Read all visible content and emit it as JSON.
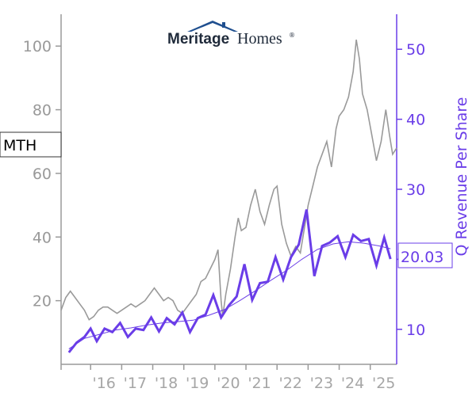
{
  "logo": {
    "brand_bold": "Meritage",
    "brand_light": "Homes",
    "mark": "®"
  },
  "ticker_label": "MTH",
  "last_value_label": "20.03",
  "colors": {
    "price": "#9a9a9a",
    "revenue": "#6a3de8",
    "trend": "#6a3de8",
    "left_axis": "#9a9a9a",
    "right_axis": "#6a3de8"
  },
  "chart_data": {
    "type": "line",
    "x_ticks": [
      "'16",
      "'17",
      "'18",
      "'19",
      "'20",
      "'21",
      "'22",
      "'23",
      "'24",
      "'25"
    ],
    "xlim": [
      2015.05,
      2025.85
    ],
    "y_left": {
      "label": "",
      "lim": [
        0,
        110
      ],
      "ticks": [
        20,
        40,
        60,
        80,
        100
      ]
    },
    "y_right": {
      "label": "Q Revenue Per Share",
      "lim": [
        5,
        55
      ],
      "ticks": [
        10,
        20,
        30,
        40,
        50
      ]
    },
    "series": [
      {
        "axis": "left",
        "style": "thin-gray",
        "points": [
          [
            2015.05,
            17
          ],
          [
            2015.2,
            21
          ],
          [
            2015.35,
            23
          ],
          [
            2015.5,
            21
          ],
          [
            2015.65,
            19
          ],
          [
            2015.8,
            17
          ],
          [
            2015.95,
            14
          ],
          [
            2016.1,
            15
          ],
          [
            2016.25,
            17
          ],
          [
            2016.4,
            18
          ],
          [
            2016.55,
            18
          ],
          [
            2016.7,
            17
          ],
          [
            2016.85,
            16
          ],
          [
            2017.0,
            17
          ],
          [
            2017.15,
            18
          ],
          [
            2017.3,
            19
          ],
          [
            2017.45,
            18
          ],
          [
            2017.6,
            19
          ],
          [
            2017.75,
            20
          ],
          [
            2017.9,
            22
          ],
          [
            2018.05,
            24
          ],
          [
            2018.2,
            22
          ],
          [
            2018.35,
            20
          ],
          [
            2018.5,
            21
          ],
          [
            2018.65,
            20
          ],
          [
            2018.8,
            17
          ],
          [
            2018.95,
            16
          ],
          [
            2019.1,
            18
          ],
          [
            2019.25,
            20
          ],
          [
            2019.4,
            22
          ],
          [
            2019.55,
            26
          ],
          [
            2019.7,
            27
          ],
          [
            2019.85,
            30
          ],
          [
            2020.0,
            33
          ],
          [
            2020.1,
            36
          ],
          [
            2020.2,
            20
          ],
          [
            2020.25,
            15
          ],
          [
            2020.35,
            22
          ],
          [
            2020.5,
            30
          ],
          [
            2020.65,
            40
          ],
          [
            2020.75,
            46
          ],
          [
            2020.85,
            42
          ],
          [
            2021.0,
            43
          ],
          [
            2021.15,
            50
          ],
          [
            2021.3,
            55
          ],
          [
            2021.45,
            48
          ],
          [
            2021.6,
            44
          ],
          [
            2021.75,
            50
          ],
          [
            2021.9,
            55
          ],
          [
            2022.0,
            56
          ],
          [
            2022.15,
            44
          ],
          [
            2022.3,
            38
          ],
          [
            2022.45,
            34
          ],
          [
            2022.6,
            37
          ],
          [
            2022.75,
            35
          ],
          [
            2022.9,
            44
          ],
          [
            2023.0,
            50
          ],
          [
            2023.15,
            56
          ],
          [
            2023.3,
            62
          ],
          [
            2023.45,
            66
          ],
          [
            2023.6,
            70
          ],
          [
            2023.75,
            62
          ],
          [
            2023.9,
            74
          ],
          [
            2024.0,
            78
          ],
          [
            2024.15,
            80
          ],
          [
            2024.3,
            84
          ],
          [
            2024.45,
            92
          ],
          [
            2024.55,
            102
          ],
          [
            2024.65,
            96
          ],
          [
            2024.75,
            85
          ],
          [
            2024.9,
            80
          ],
          [
            2025.05,
            72
          ],
          [
            2025.2,
            64
          ],
          [
            2025.35,
            70
          ],
          [
            2025.5,
            80
          ],
          [
            2025.62,
            72
          ],
          [
            2025.72,
            66
          ],
          [
            2025.85,
            68
          ]
        ]
      },
      {
        "axis": "right",
        "name": "Q Revenue Per Share",
        "style": "thick-purple",
        "points": [
          [
            2015.3,
            6.7
          ],
          [
            2015.55,
            8.1
          ],
          [
            2015.8,
            8.9
          ],
          [
            2016.0,
            10.1
          ],
          [
            2016.2,
            8.3
          ],
          [
            2016.45,
            10.1
          ],
          [
            2016.7,
            9.6
          ],
          [
            2016.95,
            10.9
          ],
          [
            2017.2,
            8.9
          ],
          [
            2017.45,
            10.1
          ],
          [
            2017.7,
            9.9
          ],
          [
            2017.95,
            11.7
          ],
          [
            2018.2,
            9.7
          ],
          [
            2018.45,
            11.6
          ],
          [
            2018.7,
            10.7
          ],
          [
            2018.95,
            12.4
          ],
          [
            2019.2,
            9.6
          ],
          [
            2019.45,
            11.6
          ],
          [
            2019.7,
            12.1
          ],
          [
            2019.95,
            14.9
          ],
          [
            2020.2,
            11.7
          ],
          [
            2020.45,
            13.4
          ],
          [
            2020.7,
            14.7
          ],
          [
            2020.95,
            19.3
          ],
          [
            2021.2,
            14.2
          ],
          [
            2021.45,
            16.6
          ],
          [
            2021.7,
            16.8
          ],
          [
            2021.95,
            20.3
          ],
          [
            2022.2,
            17.1
          ],
          [
            2022.45,
            20.3
          ],
          [
            2022.7,
            22.1
          ],
          [
            2022.95,
            27.1
          ],
          [
            2023.2,
            17.6
          ],
          [
            2023.45,
            21.9
          ],
          [
            2023.7,
            22.4
          ],
          [
            2023.95,
            23.3
          ],
          [
            2024.2,
            20.3
          ],
          [
            2024.45,
            23.5
          ],
          [
            2024.7,
            22.6
          ],
          [
            2024.95,
            22.9
          ],
          [
            2025.2,
            19.1
          ],
          [
            2025.45,
            23.1
          ],
          [
            2025.65,
            20.03
          ]
        ]
      },
      {
        "axis": "right",
        "style": "thin-purple-trend",
        "points": [
          [
            2015.3,
            7.2
          ],
          [
            2015.8,
            8.7
          ],
          [
            2016.3,
            9.3
          ],
          [
            2016.8,
            9.9
          ],
          [
            2017.3,
            10.2
          ],
          [
            2017.8,
            10.6
          ],
          [
            2018.3,
            10.9
          ],
          [
            2018.8,
            11.1
          ],
          [
            2019.3,
            11.3
          ],
          [
            2019.8,
            12.0
          ],
          [
            2020.3,
            12.8
          ],
          [
            2020.8,
            14.1
          ],
          [
            2021.3,
            15.5
          ],
          [
            2021.8,
            17.0
          ],
          [
            2022.3,
            18.4
          ],
          [
            2022.8,
            20.0
          ],
          [
            2023.3,
            21.4
          ],
          [
            2023.8,
            22.2
          ],
          [
            2024.3,
            22.5
          ],
          [
            2024.8,
            22.3
          ],
          [
            2025.3,
            21.9
          ],
          [
            2025.65,
            21.5
          ]
        ]
      }
    ]
  }
}
